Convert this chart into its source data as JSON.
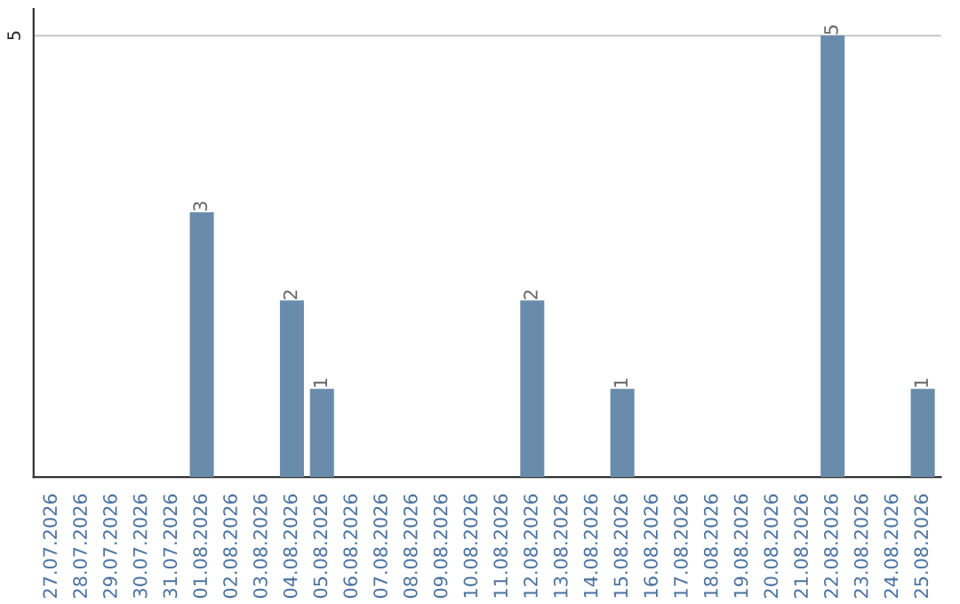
{
  "chart_data": {
    "type": "bar",
    "categories": [
      "27.07.2026",
      "28.07.2026",
      "29.07.2026",
      "30.07.2026",
      "31.07.2026",
      "01.08.2026",
      "02.08.2026",
      "03.08.2026",
      "04.08.2026",
      "05.08.2026",
      "06.08.2026",
      "07.08.2026",
      "08.08.2026",
      "09.08.2026",
      "10.08.2026",
      "11.08.2026",
      "12.08.2026",
      "13.08.2026",
      "14.08.2026",
      "15.08.2026",
      "16.08.2026",
      "17.08.2026",
      "18.08.2026",
      "19.08.2026",
      "20.08.2026",
      "21.08.2026",
      "22.08.2026",
      "23.08.2026",
      "24.08.2026",
      "25.08.2026"
    ],
    "values": [
      0,
      0,
      0,
      0,
      0,
      3,
      0,
      0,
      2,
      1,
      0,
      0,
      0,
      0,
      0,
      0,
      2,
      0,
      0,
      1,
      0,
      0,
      0,
      0,
      0,
      0,
      5,
      0,
      0,
      1
    ],
    "value_labels": [
      null,
      null,
      null,
      null,
      null,
      "3",
      null,
      null,
      "2",
      "1",
      null,
      null,
      null,
      null,
      null,
      null,
      "2",
      null,
      null,
      "1",
      null,
      null,
      null,
      null,
      null,
      null,
      "5",
      null,
      null,
      "1"
    ],
    "color": "#6a8cab",
    "ylim": [
      0,
      5.3
    ],
    "yticks": [
      5
    ],
    "grid": "y",
    "legend": false
  }
}
